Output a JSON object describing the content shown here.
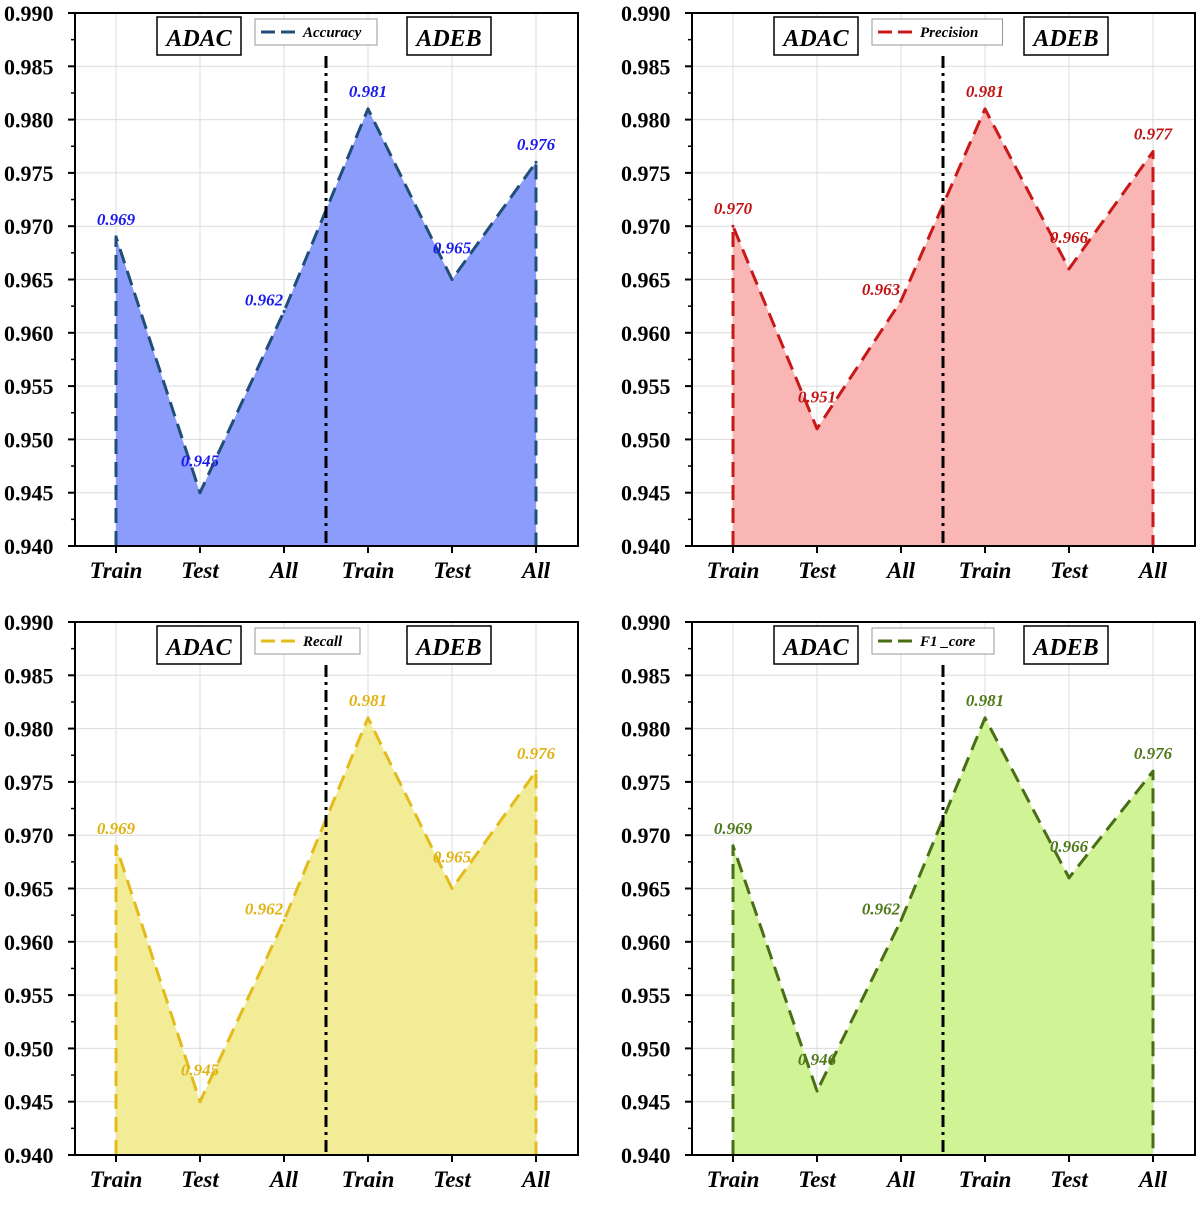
{
  "y_ticks": [
    "0.940",
    "0.945",
    "0.950",
    "0.955",
    "0.960",
    "0.965",
    "0.970",
    "0.975",
    "0.980",
    "0.985",
    "0.990"
  ],
  "x_tick_labels": [
    "Train",
    "Test",
    "All",
    "Train",
    "Test",
    "All"
  ],
  "group_labels": [
    "ADAC",
    "ADEB"
  ],
  "chart_data": [
    {
      "type": "area",
      "legend": "Accuracy",
      "line_color": "#1f4e79",
      "fill_color": "#8c9cfb",
      "label_color": "#1a1af0",
      "categories": [
        "Train",
        "Test",
        "All",
        "Train",
        "Test",
        "All"
      ],
      "values": [
        0.969,
        0.945,
        0.962,
        0.981,
        0.965,
        0.976
      ],
      "data_labels": [
        "0.969",
        "0.945",
        "0.962",
        "0.981",
        "0.965",
        "0.976"
      ],
      "ylim": [
        0.94,
        0.99
      ],
      "groups": [
        "ADAC",
        "ADEB"
      ],
      "legend_position": "top-center",
      "grid": true
    },
    {
      "type": "area",
      "legend": "Precision",
      "line_color": "#c81818",
      "fill_color": "#fab5b5",
      "label_color": "#c01414",
      "categories": [
        "Train",
        "Test",
        "All",
        "Train",
        "Test",
        "All"
      ],
      "values": [
        0.97,
        0.951,
        0.963,
        0.981,
        0.966,
        0.977
      ],
      "data_labels": [
        "0.970",
        "0.951",
        "0.963",
        "0.981",
        "0.966",
        "0.977"
      ],
      "ylim": [
        0.94,
        0.99
      ],
      "groups": [
        "ADAC",
        "ADEB"
      ],
      "legend_position": "top-center",
      "grid": true
    },
    {
      "type": "area",
      "legend": "Recall",
      "line_color": "#e3bb1c",
      "fill_color": "#f2ec96",
      "label_color": "#e0b212",
      "categories": [
        "Train",
        "Test",
        "All",
        "Train",
        "Test",
        "All"
      ],
      "values": [
        0.969,
        0.945,
        0.962,
        0.981,
        0.965,
        0.976
      ],
      "data_labels": [
        "0.969",
        "0.945",
        "0.962",
        "0.981",
        "0.965",
        "0.976"
      ],
      "ylim": [
        0.94,
        0.99
      ],
      "groups": [
        "ADAC",
        "ADEB"
      ],
      "legend_position": "top-center",
      "grid": true
    },
    {
      "type": "area",
      "legend": "F1 _core",
      "line_color": "#4a6e16",
      "fill_color": "#cff395",
      "label_color": "#4e7a1a",
      "categories": [
        "Train",
        "Test",
        "All",
        "Train",
        "Test",
        "All"
      ],
      "values": [
        0.969,
        0.946,
        0.962,
        0.981,
        0.966,
        0.976
      ],
      "data_labels": [
        "0.969",
        "0.946",
        "0.962",
        "0.981",
        "0.966",
        "0.976"
      ],
      "ylim": [
        0.94,
        0.99
      ],
      "groups": [
        "ADAC",
        "ADEB"
      ],
      "legend_position": "top-center",
      "grid": true
    }
  ]
}
